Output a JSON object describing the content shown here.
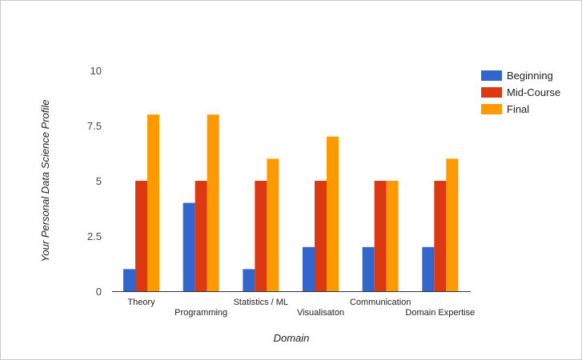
{
  "chart_data": {
    "type": "bar",
    "xlabel": "Domain",
    "ylabel": "Your Personal Data Science Profile",
    "ylim": [
      0,
      10
    ],
    "yticks": [
      "0",
      "2.5",
      "5",
      "7.5",
      "10"
    ],
    "categories": [
      "Theory",
      "Programming",
      "Statistics / ML",
      "Visualisaton",
      "Communication",
      "Domain Expertise"
    ],
    "series": [
      {
        "name": "Beginning",
        "color": "#3366cc",
        "values": [
          1,
          4,
          1,
          2,
          2,
          2
        ]
      },
      {
        "name": "Mid-Course",
        "color": "#dc3912",
        "values": [
          5,
          5,
          5,
          5,
          5,
          5
        ]
      },
      {
        "name": "Final",
        "color": "#ff9900",
        "values": [
          8,
          8,
          6,
          7,
          5,
          6
        ]
      }
    ],
    "grid": false,
    "legend": "right"
  }
}
